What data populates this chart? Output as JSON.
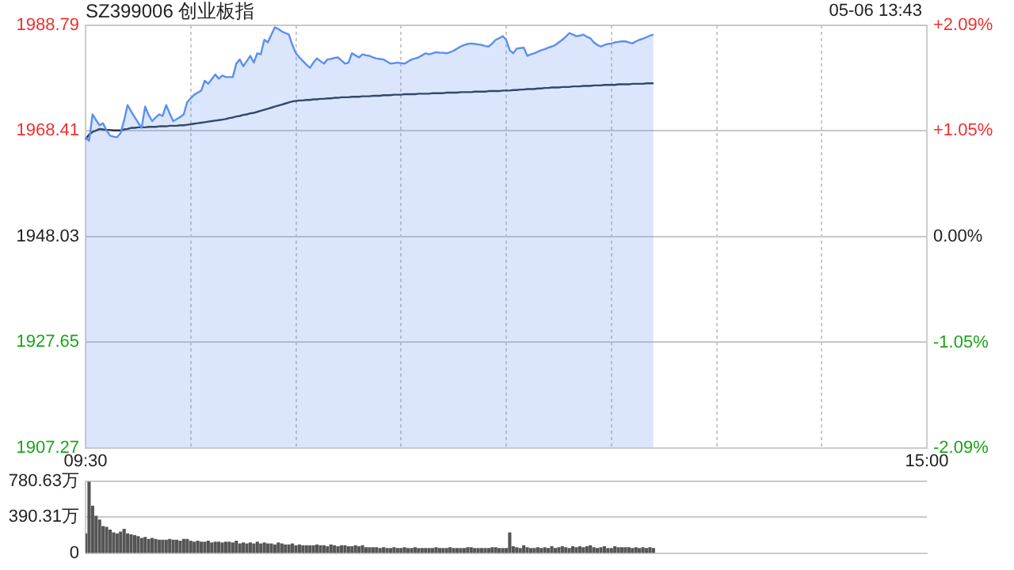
{
  "chart_data": [
    {
      "type": "line",
      "title": "SZ399006 创业板指",
      "subtitle": "05-06 13:43",
      "grid": true,
      "legend": false,
      "categories": [
        "09:30",
        null,
        null,
        null,
        null,
        null,
        null,
        null,
        null,
        null,
        null,
        null,
        null,
        null,
        null,
        null,
        null,
        null,
        null,
        null,
        null,
        null,
        null,
        null,
        null,
        null,
        null,
        null,
        null,
        null,
        null,
        null,
        null,
        null,
        null,
        null,
        null,
        null,
        null,
        null,
        null,
        null,
        null,
        null,
        null,
        null,
        null,
        null,
        null,
        null,
        null,
        null,
        null,
        null,
        null,
        null,
        null,
        null,
        null,
        null,
        null,
        null,
        null,
        null,
        null,
        null,
        null,
        null,
        null,
        null,
        null,
        null,
        null,
        null,
        null,
        null,
        null,
        null,
        null,
        null,
        null,
        null,
        null,
        null,
        null,
        null,
        null,
        null,
        null,
        null,
        null,
        null,
        null,
        null,
        null,
        null,
        null,
        null,
        null,
        null,
        null,
        null,
        null,
        null,
        null,
        null,
        null,
        null,
        null,
        null,
        null,
        null,
        null,
        null,
        null,
        null,
        null,
        null,
        null,
        null,
        null,
        null,
        null,
        null,
        null,
        null,
        null,
        null,
        null,
        null,
        null,
        null,
        null,
        null,
        null,
        null,
        null,
        null,
        null,
        null,
        null,
        null,
        null,
        null,
        null,
        null,
        null,
        null,
        null,
        null,
        null,
        null,
        null,
        null,
        null,
        null,
        null,
        null,
        null,
        null,
        null,
        null,
        null,
        null,
        null,
        null,
        null,
        null,
        null,
        null,
        null,
        null,
        null,
        null,
        null,
        null,
        null,
        null,
        null,
        null,
        null,
        null,
        null,
        null,
        null,
        null,
        null,
        null,
        null,
        null,
        null,
        null,
        null,
        null,
        null,
        null,
        null,
        null,
        null,
        null,
        null,
        null,
        null,
        null,
        null,
        null,
        null,
        null,
        null,
        null,
        null,
        null,
        null,
        null,
        null,
        null,
        null,
        null,
        null,
        null,
        null,
        null,
        null,
        null,
        null,
        null,
        null,
        null,
        null,
        null,
        null,
        null,
        null,
        null,
        null,
        null,
        null,
        null,
        null,
        null,
        "15:00"
      ],
      "ylim": [
        1907.27,
        1988.79
      ],
      "yticks": [
        1907.27,
        1927.65,
        1948.03,
        1968.41,
        1988.79
      ],
      "y2lim": [
        -2.09,
        2.09
      ],
      "y2ticks": [
        {
          "value": -2.09,
          "label": "-2.09%"
        },
        {
          "value": -1.05,
          "label": "-1.05%"
        },
        {
          "value": 0,
          "label": "0.00%"
        },
        {
          "value": 1.05,
          "label": "+1.05%"
        },
        {
          "value": 2.09,
          "label": "+2.09%"
        }
      ],
      "series": [
        {
          "type": "area",
          "color": "#5b8ff0",
          "values": [
            1967.2,
            1966.5,
            1971.6,
            1970.5,
            1969.5,
            1969.9,
            1968.5,
            1967.5,
            1967.3,
            1967.2,
            1968.0,
            1970.5,
            1973.4,
            1972.2,
            1971.1,
            1970.0,
            1969.0,
            1973.1,
            1971.5,
            1970.3,
            1971.0,
            1971.6,
            1971.3,
            1973.4,
            1971.8,
            1970.3,
            1970.7,
            1971.1,
            1971.6,
            1974.0,
            1974.7,
            1975.4,
            1975.8,
            1976.2,
            1978.1,
            1977.5,
            1978.4,
            1979.3,
            1978.5,
            1979.1,
            1978.8,
            1978.8,
            1978.8,
            1981.4,
            1982.2,
            1980.9,
            1981.9,
            1982.9,
            1981.6,
            1983.4,
            1983.2,
            1986.0,
            1985.5,
            1987.0,
            1988.4,
            1988.1,
            1987.6,
            1987.3,
            1987.0,
            1985.0,
            1983.4,
            1982.6,
            1981.9,
            1981.2,
            1980.6,
            1981.6,
            1982.4,
            1981.9,
            1981.4,
            1982.2,
            1982.3,
            1982.5,
            1982.6,
            1982.0,
            1981.4,
            1981.6,
            1983.4,
            1983.0,
            1982.6,
            1983.2,
            1983.0,
            1982.9,
            1982.6,
            1982.4,
            1982.3,
            1982.2,
            1981.8,
            1981.4,
            1981.5,
            1981.6,
            1981.5,
            1981.4,
            1981.8,
            1982.2,
            1982.4,
            1982.6,
            1983.0,
            1983.4,
            1983.2,
            1983.4,
            1983.6,
            1983.5,
            1983.5,
            1983.4,
            1983.6,
            1983.9,
            1984.3,
            1984.7,
            1985.0,
            1985.2,
            1985.3,
            1985.2,
            1985.1,
            1985.0,
            1984.8,
            1984.7,
            1985.3,
            1986.0,
            1986.3,
            1986.7,
            1986.0,
            1984.0,
            1983.4,
            1984.3,
            1984.4,
            1984.5,
            1982.9,
            1983.2,
            1983.4,
            1983.7,
            1984.0,
            1984.2,
            1984.5,
            1984.7,
            1985.0,
            1985.5,
            1986.0,
            1986.6,
            1987.3,
            1987.0,
            1986.7,
            1986.8,
            1987.0,
            1986.6,
            1986.3,
            1985.5,
            1985.0,
            1984.7,
            1985.0,
            1985.2,
            1985.3,
            1985.5,
            1985.6,
            1985.7,
            1985.7,
            1985.5,
            1985.3,
            1985.7,
            1986.0,
            1986.2,
            1986.5,
            1986.8,
            1987.0,
            null,
            null,
            null,
            null,
            null,
            null,
            null,
            null,
            null,
            null,
            null,
            null,
            null,
            null,
            null,
            null,
            null,
            null,
            null,
            null,
            null,
            null,
            null,
            null,
            null,
            null,
            null,
            null,
            null,
            null,
            null,
            null,
            null,
            null,
            null,
            null,
            null,
            null,
            null,
            null,
            null,
            null,
            null,
            null,
            null,
            null,
            null,
            null,
            null,
            null,
            null,
            null,
            null,
            null,
            null,
            null,
            null,
            null,
            null,
            null,
            null,
            null,
            null,
            null,
            null,
            null,
            null,
            null,
            null,
            null,
            null,
            null,
            null,
            null,
            null,
            null,
            null,
            null
          ]
        },
        {
          "type": "line",
          "color": "#2a3446",
          "values": [
            1966.8,
            1967.7,
            1968.2,
            1968.5,
            1968.8,
            1968.7,
            1968.6,
            1968.6,
            1968.5,
            1968.5,
            1968.5,
            1968.7,
            1968.8,
            1969.0,
            1969.0,
            1969.1,
            1969.1,
            1969.1,
            1969.2,
            1969.2,
            1969.2,
            1969.3,
            1969.3,
            1969.3,
            1969.4,
            1969.4,
            1969.4,
            1969.5,
            1969.5,
            1969.6,
            1969.7,
            1969.8,
            1969.9,
            1970.0,
            1970.1,
            1970.2,
            1970.3,
            1970.4,
            1970.5,
            1970.6,
            1970.7,
            1970.9,
            1971.0,
            1971.2,
            1971.3,
            1971.5,
            1971.6,
            1971.8,
            1971.9,
            1972.1,
            1972.3,
            1972.5,
            1972.7,
            1972.9,
            1973.1,
            1973.3,
            1973.5,
            1973.7,
            1973.9,
            1974.1,
            1974.2,
            1974.3,
            1974.3,
            1974.4,
            1974.4,
            1974.5,
            1974.5,
            1974.6,
            1974.6,
            1974.7,
            1974.7,
            1974.8,
            1974.8,
            1974.9,
            1974.9,
            1974.9,
            1975.0,
            1975.0,
            1975.0,
            1975.1,
            1975.1,
            1975.1,
            1975.2,
            1975.2,
            1975.2,
            1975.3,
            1975.3,
            1975.3,
            1975.4,
            1975.4,
            1975.4,
            1975.5,
            1975.5,
            1975.5,
            1975.5,
            1975.6,
            1975.6,
            1975.6,
            1975.6,
            1975.7,
            1975.7,
            1975.7,
            1975.7,
            1975.8,
            1975.8,
            1975.8,
            1975.8,
            1975.9,
            1975.9,
            1975.9,
            1975.9,
            1976.0,
            1976.0,
            1976.0,
            1976.0,
            1976.1,
            1976.1,
            1976.1,
            1976.1,
            1976.2,
            1976.2,
            1976.2,
            1976.3,
            1976.3,
            1976.4,
            1976.4,
            1976.5,
            1976.5,
            1976.5,
            1976.6,
            1976.6,
            1976.7,
            1976.7,
            1976.8,
            1976.8,
            1976.8,
            1976.9,
            1976.9,
            1976.9,
            1977.0,
            1977.0,
            1977.0,
            1977.1,
            1977.1,
            1977.1,
            1977.2,
            1977.2,
            1977.2,
            1977.3,
            1977.3,
            1977.3,
            1977.3,
            1977.4,
            1977.4,
            1977.4,
            1977.4,
            1977.5,
            1977.5,
            1977.5,
            1977.5,
            1977.6,
            1977.6,
            1977.6,
            null,
            null,
            null,
            null,
            null,
            null,
            null,
            null,
            null,
            null,
            null,
            null,
            null,
            null,
            null,
            null,
            null,
            null,
            null,
            null,
            null,
            null,
            null,
            null,
            null,
            null,
            null,
            null,
            null,
            null,
            null,
            null,
            null,
            null,
            null,
            null,
            null,
            null,
            null,
            null,
            null,
            null,
            null,
            null,
            null,
            null,
            null,
            null,
            null,
            null,
            null,
            null,
            null,
            null,
            null,
            null,
            null,
            null,
            null,
            null,
            null,
            null,
            null,
            null,
            null,
            null,
            null,
            null,
            null,
            null,
            null,
            null,
            null,
            null,
            null,
            null,
            null,
            null
          ]
        }
      ]
    },
    {
      "type": "bar",
      "color": "#555555",
      "grid": "y",
      "legend": false,
      "tick_labels": "y",
      "categories": [
        null,
        null,
        null,
        null,
        null,
        null,
        null,
        null,
        null,
        null,
        null,
        null,
        null,
        null,
        null,
        null,
        null,
        null,
        null,
        null,
        null,
        null,
        null,
        null,
        null,
        null,
        null,
        null,
        null,
        null,
        null,
        null,
        null,
        null,
        null,
        null,
        null,
        null,
        null,
        null,
        null,
        null,
        null,
        null,
        null,
        null,
        null,
        null,
        null,
        null,
        null,
        null,
        null,
        null,
        null,
        null,
        null,
        null,
        null,
        null,
        null,
        null,
        null,
        null,
        null,
        null,
        null,
        null,
        null,
        null,
        null,
        null,
        null,
        null,
        null,
        null,
        null,
        null,
        null,
        null,
        null,
        null,
        null,
        null,
        null,
        null,
        null,
        null,
        null,
        null,
        null,
        null,
        null,
        null,
        null,
        null,
        null,
        null,
        null,
        null,
        null,
        null,
        null,
        null,
        null,
        null,
        null,
        null,
        null,
        null,
        null,
        null,
        null,
        null,
        null,
        null,
        null,
        null,
        null,
        null,
        null,
        null,
        null,
        null,
        null,
        null,
        null,
        null,
        null,
        null,
        null,
        null,
        null,
        null,
        null,
        null,
        null,
        null,
        null,
        null,
        null,
        null,
        null,
        null,
        null,
        null,
        null,
        null,
        null,
        null,
        null,
        null,
        null,
        null,
        null,
        null,
        null,
        null,
        null,
        null,
        null,
        null,
        null,
        null,
        null,
        null,
        null,
        null,
        null,
        null,
        null,
        null,
        null,
        null,
        null,
        null,
        null,
        null,
        null,
        null,
        null,
        null,
        null,
        null,
        null,
        null,
        null,
        null,
        null,
        null,
        null,
        null,
        null,
        null,
        null,
        null,
        null,
        null,
        null,
        null,
        null,
        null,
        null,
        null,
        null,
        null,
        null,
        null,
        null,
        null,
        null,
        null,
        null,
        null,
        null,
        null,
        null,
        null,
        null,
        null,
        null,
        null,
        null,
        null,
        null,
        null,
        null,
        null,
        null,
        null,
        null,
        null,
        null,
        null,
        null,
        null,
        null,
        null,
        null,
        null,
        null
      ],
      "ylim": [
        0,
        780.63
      ],
      "yticks": [
        0,
        {
          "value": 390.31,
          "label": "390.31万"
        },
        {
          "value": 780.63,
          "label": "780.63万"
        }
      ],
      "values": [
        210,
        770,
        510,
        400,
        360,
        290,
        280,
        250,
        220,
        210,
        230,
        260,
        210,
        200,
        190,
        180,
        160,
        170,
        150,
        160,
        150,
        140,
        140,
        140,
        150,
        140,
        140,
        130,
        150,
        150,
        130,
        120,
        130,
        120,
        120,
        130,
        110,
        120,
        120,
        110,
        120,
        120,
        110,
        130,
        100,
        110,
        100,
        110,
        100,
        120,
        100,
        110,
        100,
        100,
        90,
        110,
        100,
        90,
        90,
        100,
        80,
        90,
        80,
        80,
        80,
        80,
        90,
        80,
        80,
        70,
        90,
        80,
        70,
        80,
        80,
        70,
        70,
        80,
        70,
        80,
        60,
        60,
        60,
        60,
        50,
        60,
        50,
        50,
        60,
        50,
        50,
        60,
        50,
        50,
        60,
        50,
        50,
        50,
        50,
        50,
        60,
        50,
        50,
        50,
        60,
        50,
        50,
        50,
        50,
        60,
        60,
        50,
        50,
        50,
        50,
        50,
        60,
        60,
        50,
        50,
        50,
        220,
        70,
        60,
        50,
        80,
        60,
        50,
        50,
        60,
        50,
        60,
        50,
        70,
        50,
        60,
        70,
        60,
        50,
        70,
        60,
        70,
        60,
        70,
        80,
        60,
        50,
        60,
        70,
        50,
        50,
        70,
        60,
        60,
        60,
        60,
        50,
        60,
        50,
        60,
        50,
        60,
        50,
        null,
        null,
        null,
        null,
        null,
        null,
        null,
        null,
        null,
        null,
        null,
        null,
        null,
        null,
        null,
        null,
        null,
        null,
        null,
        null,
        null,
        null,
        null,
        null,
        null,
        null,
        null,
        null,
        null,
        null,
        null,
        null,
        null,
        null,
        null,
        null,
        null,
        null,
        null,
        null,
        null,
        null,
        null,
        null,
        null,
        null,
        null,
        null,
        null,
        null,
        null,
        null,
        null,
        null,
        null,
        null,
        null,
        null,
        null,
        null,
        null,
        null,
        null,
        null,
        null,
        null,
        null,
        null,
        null,
        null,
        null,
        null,
        null,
        null,
        null,
        null,
        null,
        null
      ]
    }
  ]
}
